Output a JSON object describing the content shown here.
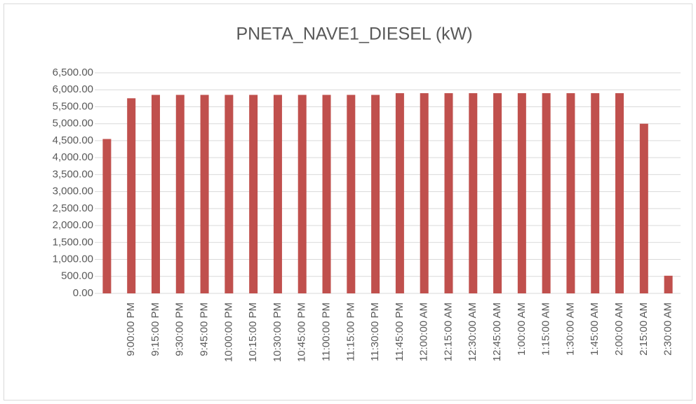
{
  "chart_data": {
    "type": "bar",
    "title": "PNETA_NAVE1_DIESEL (kW)",
    "categories": [
      null,
      "9:00:00 PM",
      "9:15:00 PM",
      "9:30:00 PM",
      "9:45:00 PM",
      "10:00:00 PM",
      "10:15:00 PM",
      "10:30:00 PM",
      "10:45:00 PM",
      "11:00:00 PM",
      "11:15:00 PM",
      "11:30:00 PM",
      "11:45:00 PM",
      "12:00:00 AM",
      "12:15:00 AM",
      "12:30:00 AM",
      "12:45:00 AM",
      "1:00:00 AM",
      "1:15:00 AM",
      "1:30:00 AM",
      "1:45:00 AM",
      "2:00:00 AM",
      "2:15:00 AM",
      "2:30:00 AM"
    ],
    "values": [
      4550,
      5750,
      5850,
      5850,
      5850,
      5850,
      5850,
      5850,
      5850,
      5850,
      5850,
      5850,
      5900,
      5900,
      5900,
      5900,
      5900,
      5900,
      5900,
      5900,
      5900,
      5900,
      5000,
      520
    ],
    "color": "#c0504d",
    "ylim": [
      0,
      6500
    ],
    "yticks": [
      {
        "value": 0,
        "label": "0.00"
      },
      {
        "value": 500,
        "label": "500.00"
      },
      {
        "value": 1000,
        "label": "1,000.00"
      },
      {
        "value": 1500,
        "label": "1,500.00"
      },
      {
        "value": 2000,
        "label": "2,000.00"
      },
      {
        "value": 2500,
        "label": "2,500.00"
      },
      {
        "value": 3000,
        "label": "3,000.00"
      },
      {
        "value": 3500,
        "label": "3,500.00"
      },
      {
        "value": 4000,
        "label": "4,000.00"
      },
      {
        "value": 4500,
        "label": "4,500.00"
      },
      {
        "value": 5000,
        "label": "5,000.00"
      },
      {
        "value": 5500,
        "label": "5,500.00"
      },
      {
        "value": 6000,
        "label": "6,000.00"
      },
      {
        "value": 6500,
        "label": "6,500.00"
      }
    ],
    "grid": true
  }
}
